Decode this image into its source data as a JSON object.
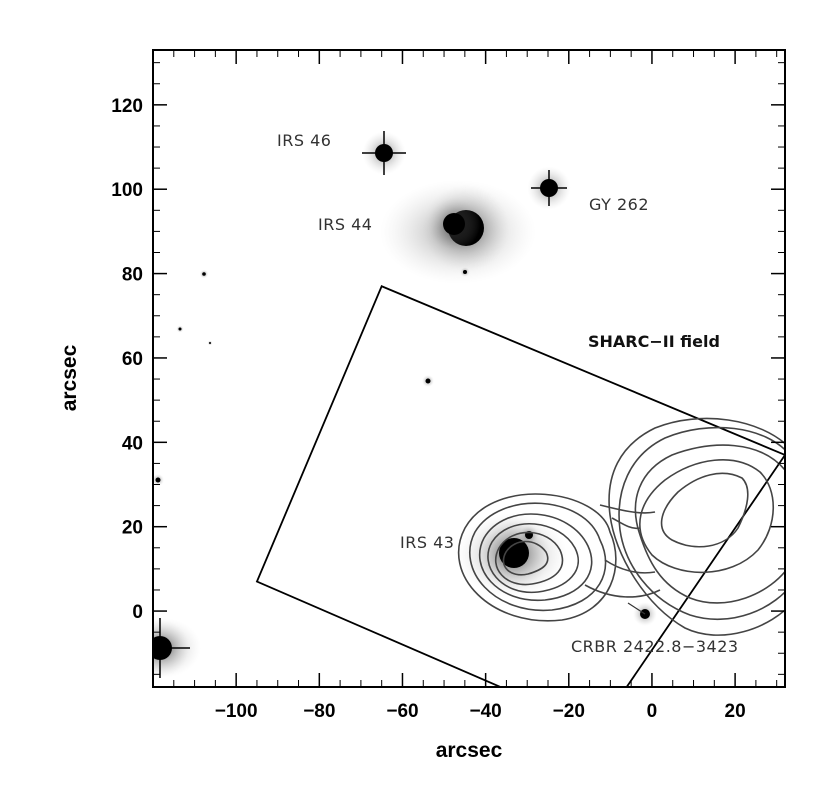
{
  "chart_data": {
    "type": "image-with-contours",
    "xlabel": "arcsec",
    "ylabel": "arcsec",
    "xlim": [
      -120,
      32
    ],
    "ylim": [
      -18,
      133
    ],
    "x_ticks": [
      -100,
      -80,
      -60,
      -40,
      -20,
      0,
      20
    ],
    "y_ticks": [
      0,
      20,
      40,
      60,
      80,
      100,
      120
    ],
    "x_tick_labels": [
      "−100",
      "−80",
      "−60",
      "−40",
      "−20",
      "0",
      "20"
    ],
    "y_tick_labels": [
      "0",
      "20",
      "40",
      "60",
      "80",
      "100",
      "120"
    ],
    "sources": [
      {
        "label": "IRS 46",
        "x": -65,
        "y": 108
      },
      {
        "label": "GY 262",
        "x": -25,
        "y": 100
      },
      {
        "label": "IRS 44",
        "x": -45,
        "y": 91
      },
      {
        "label": "IRS 43",
        "x": -35,
        "y": 13
      },
      {
        "label": "CRBR 2422.8−3423",
        "x": -2,
        "y": -1
      }
    ],
    "field_label": "SHARC−II field",
    "field_corners": [
      [
        -65,
        77
      ],
      [
        32,
        37
      ],
      [
        -13,
        -28
      ],
      [
        -95,
        7
      ]
    ]
  }
}
